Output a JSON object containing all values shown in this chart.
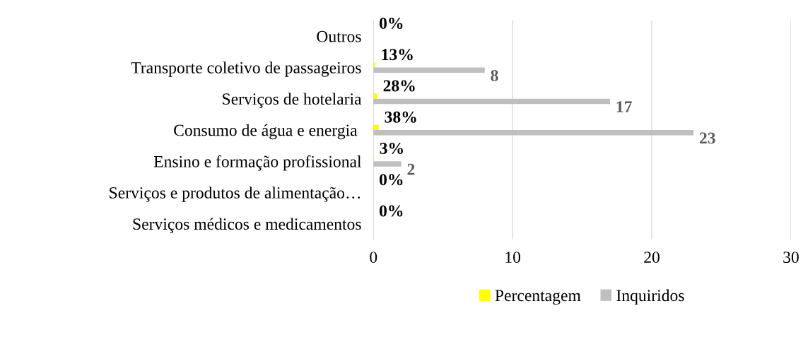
{
  "chart_data": {
    "type": "bar",
    "orientation": "horizontal",
    "categories": [
      "Outros",
      "Transporte coletivo de passageiros",
      "Serviços de hotelaria",
      "Consumo de água e energia ",
      "Ensino e formação profissional",
      "Serviços e produtos de alimentação…",
      "Serviços médicos e medicamentos"
    ],
    "series": [
      {
        "name": "Percentagem",
        "color": "#ffff00",
        "values": [
          0,
          0.13,
          0.28,
          0.38,
          0.03,
          0,
          0
        ],
        "value_labels": [
          "0%",
          "13%",
          "28%",
          "38%",
          "3%",
          "0%",
          "0%"
        ]
      },
      {
        "name": "Inquiridos",
        "color": "#bfbfbf",
        "values": [
          0,
          8,
          17,
          23,
          2,
          0,
          0
        ],
        "value_labels": [
          null,
          "8",
          "17",
          "23",
          "2",
          null,
          null
        ]
      }
    ],
    "xlim": [
      0,
      30
    ],
    "xticks": [
      0,
      10,
      20,
      30
    ],
    "grid": "x",
    "legend": "bottom"
  }
}
